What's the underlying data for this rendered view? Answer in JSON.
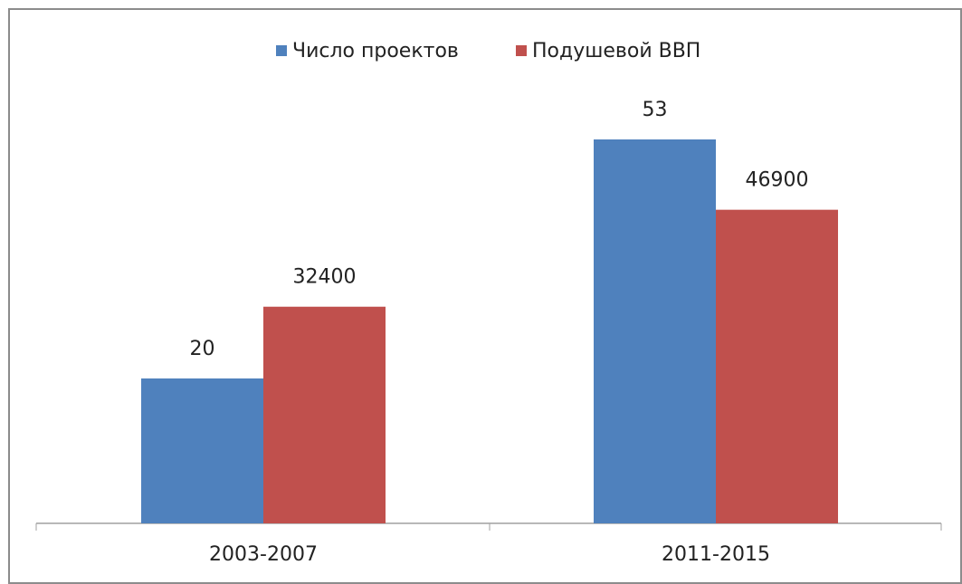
{
  "chart_data": {
    "type": "bar",
    "categories": [
      "2003-2007",
      "2011-2015"
    ],
    "series": [
      {
        "name": "Число проектов",
        "color": "#4f81bd",
        "values": [
          20,
          53
        ]
      },
      {
        "name": "Подушевой ВВП",
        "color": "#c0504d",
        "values": [
          32400,
          46900
        ],
        "axis": "y2"
      }
    ],
    "ylim": [
      0,
      60
    ],
    "y2lim": [
      0,
      65000
    ],
    "grid": false,
    "legend": "top"
  }
}
